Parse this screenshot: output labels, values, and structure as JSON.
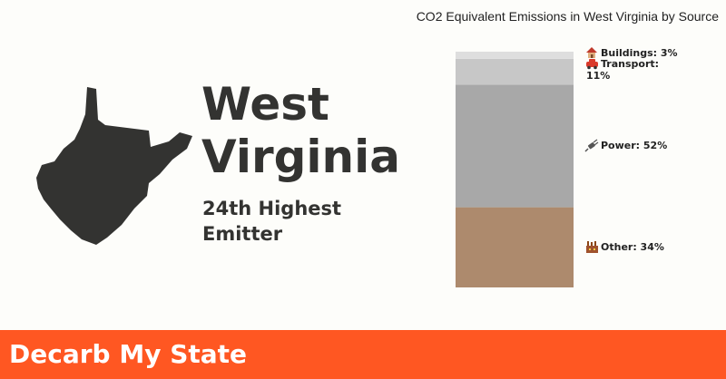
{
  "state": {
    "name_line1": "West",
    "name_line2": "Virginia",
    "rank_line1": "24th Highest",
    "rank_line2": "Emitter"
  },
  "footer": {
    "title": "Decarb My State"
  },
  "colors": {
    "background": "#fdfdfa",
    "footer": "#ff5722",
    "map": "#333331"
  },
  "chart_data": {
    "type": "bar",
    "stacked": true,
    "title": "CO2 Equivalent Emissions in West Virginia by Source",
    "categories": [
      "West Virginia"
    ],
    "ylim": [
      0,
      100
    ],
    "grid": false,
    "series": [
      {
        "name": "Other",
        "icon": "factory-icon",
        "value": 34,
        "label": "Other: 34%",
        "color": "#ad8a6d"
      },
      {
        "name": "Power",
        "icon": "plug-icon",
        "value": 52,
        "label": "Power: 52%",
        "color": "#a8a8a8"
      },
      {
        "name": "Transport",
        "icon": "car-icon",
        "value": 11,
        "label": "Transport: 11%",
        "label_line1": "Transport:",
        "label_line2": "11%",
        "color": "#c7c7c7"
      },
      {
        "name": "Buildings",
        "icon": "house-icon",
        "value": 3,
        "label": "Buildings: 3%",
        "color": "#dedede"
      }
    ]
  }
}
